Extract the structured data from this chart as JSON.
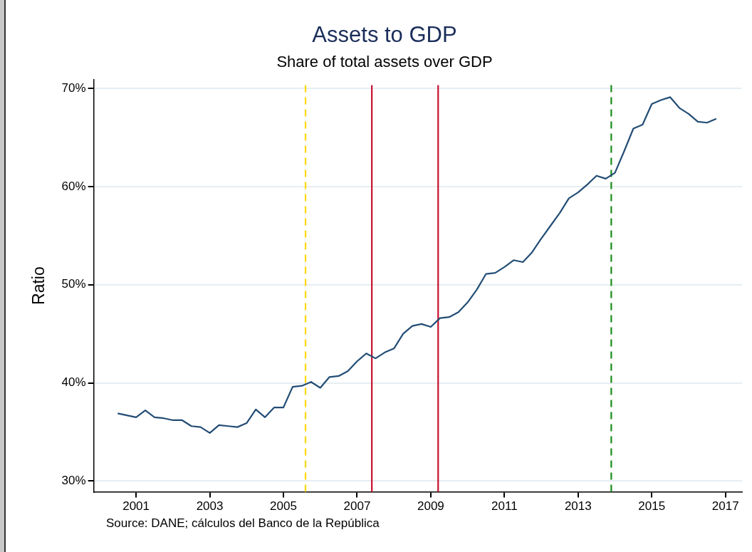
{
  "chart_data": {
    "type": "line",
    "title": "Assets to GDP",
    "subtitle": "Share of total assets over GDP",
    "ylabel": "Ratio",
    "annotations": [
      "Source: DANE; cálculos del Banco de la República"
    ],
    "x": [
      2000.5,
      2000.75,
      2001,
      2001.25,
      2001.5,
      2001.75,
      2002,
      2002.25,
      2002.5,
      2002.75,
      2003,
      2003.25,
      2003.5,
      2003.75,
      2004,
      2004.25,
      2004.5,
      2004.75,
      2005,
      2005.25,
      2005.5,
      2005.75,
      2006,
      2006.25,
      2006.5,
      2006.75,
      2007,
      2007.25,
      2007.5,
      2007.75,
      2008,
      2008.25,
      2008.5,
      2008.75,
      2009,
      2009.25,
      2009.5,
      2009.75,
      2010,
      2010.25,
      2010.5,
      2010.75,
      2011,
      2011.25,
      2011.5,
      2011.75,
      2012,
      2012.25,
      2012.5,
      2012.75,
      2013,
      2013.25,
      2013.5,
      2013.75,
      2014,
      2014.25,
      2014.5,
      2014.75,
      2015,
      2015.25,
      2015.5,
      2015.75,
      2016,
      2016.25,
      2016.5,
      2016.75
    ],
    "series": [
      {
        "color": "#234d75",
        "values": [
          36.9,
          36.7,
          36.5,
          37.2,
          36.5,
          36.4,
          36.2,
          36.2,
          35.6,
          35.5,
          34.9,
          35.7,
          35.6,
          35.5,
          35.9,
          37.3,
          36.5,
          37.5,
          37.5,
          39.6,
          39.7,
          40.1,
          39.5,
          40.6,
          40.7,
          41.2,
          42.2,
          43.0,
          42.5,
          43.1,
          43.5,
          45.0,
          45.8,
          46.0,
          45.7,
          46.6,
          46.7,
          47.2,
          48.2,
          49.5,
          51.1,
          51.2,
          51.8,
          52.5,
          52.3,
          53.3,
          54.7,
          56.0,
          57.3,
          58.8,
          59.4,
          60.2,
          61.1,
          60.8,
          61.4,
          63.6,
          65.9,
          66.3,
          68.4,
          68.8,
          69.1,
          68.0,
          67.4,
          66.6,
          66.5,
          66.9
        ]
      }
    ],
    "xlim": [
      1999.85,
      2017.45
    ],
    "xticks": [
      2001,
      2003,
      2005,
      2007,
      2009,
      2011,
      2013,
      2015,
      2017
    ],
    "ylim": [
      28.9,
      70.9
    ],
    "yticks": [
      {
        "value": 30,
        "label": "30%"
      },
      {
        "value": 40,
        "label": "40%"
      },
      {
        "value": 50,
        "label": "50%"
      },
      {
        "value": 60,
        "label": "60%"
      },
      {
        "value": 70,
        "label": "70%"
      }
    ],
    "ref_lines": [
      {
        "axis": "x",
        "value": 2005.6,
        "color": "#ffd700",
        "line_style": "dashed"
      },
      {
        "axis": "x",
        "value": 2007.4,
        "color": "#c8102e",
        "line_style": "solid"
      },
      {
        "axis": "x",
        "value": 2009.2,
        "color": "#c8102e",
        "line_style": "solid"
      },
      {
        "axis": "x",
        "value": 2013.9,
        "color": "#1a8c1a",
        "line_style": "dashed"
      }
    ],
    "grid": "y",
    "legend": false,
    "marker": "none",
    "line_style": "solid"
  }
}
